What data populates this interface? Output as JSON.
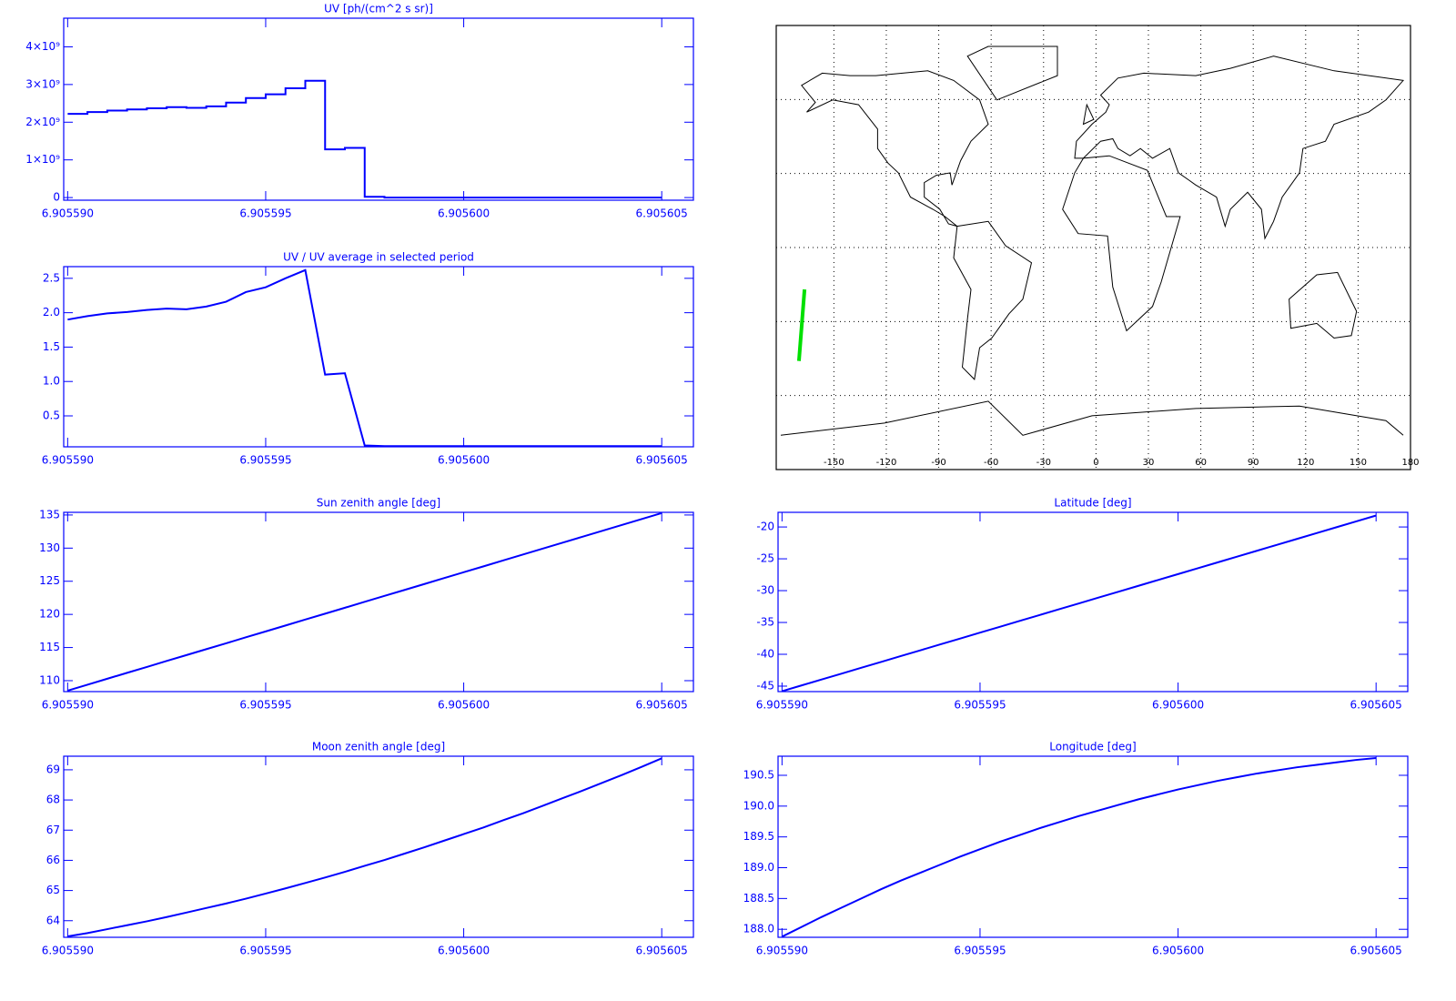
{
  "chart_data": [
    {
      "type": "line",
      "step": true,
      "title": "UV [ph/(cm^2 s sr)]",
      "x": [
        6.90559,
        6.9055905,
        6.905591,
        6.9055915,
        6.905592,
        6.9055925,
        6.905593,
        6.9055935,
        6.905594,
        6.9055945,
        6.905595,
        6.9055955,
        6.905596,
        6.9055965,
        6.905597,
        6.9055975,
        6.905598,
        6.9055985,
        6.905599,
        6.9055995,
        6.9056,
        6.9056005,
        6.905601,
        6.9056015,
        6.905602,
        6.9056025,
        6.905603,
        6.9056035,
        6.905604,
        6.9056045,
        6.905605
      ],
      "series": [
        {
          "color": "#0000ff",
          "values": [
            2220000000,
            2270000000,
            2310000000,
            2340000000,
            2370000000,
            2400000000,
            2380000000,
            2420000000,
            2520000000,
            2640000000,
            2740000000,
            2900000000,
            3100000000,
            1280000000,
            1320000000,
            20000000,
            0,
            0,
            0,
            0,
            0,
            0,
            0,
            0,
            0,
            0,
            0,
            0,
            0,
            0,
            0
          ]
        }
      ],
      "xlim": [
        6.9055899,
        6.9056058
      ],
      "ylim": [
        -70000000,
        4760000000
      ],
      "xticks": [
        {
          "value": 6.90559,
          "label": "6.905590"
        },
        {
          "value": 6.905595,
          "label": "6.905595"
        },
        {
          "value": 6.9056,
          "label": "6.905600"
        },
        {
          "value": 6.905605,
          "label": "6.905605"
        }
      ],
      "yticks": [
        0,
        {
          "value": 1000000000,
          "label": "1×10⁹"
        },
        {
          "value": 2000000000,
          "label": "2×10⁹"
        },
        {
          "value": 3000000000,
          "label": "3×10⁹"
        },
        {
          "value": 4000000000,
          "label": "4×10⁹"
        }
      ]
    },
    {
      "type": "line",
      "title": "UV / UV average in selected period",
      "x": [
        6.90559,
        6.9055905,
        6.905591,
        6.9055915,
        6.905592,
        6.9055925,
        6.905593,
        6.9055935,
        6.905594,
        6.9055945,
        6.905595,
        6.9055955,
        6.905596,
        6.9055965,
        6.905597,
        6.9055975,
        6.905598,
        6.9055985,
        6.905599,
        6.9055995,
        6.9056,
        6.9056005,
        6.905601,
        6.9056015,
        6.905602,
        6.9056025,
        6.905603,
        6.9056035,
        6.905604,
        6.9056045,
        6.905605
      ],
      "series": [
        {
          "color": "#0000ff",
          "values": [
            1.9,
            1.95,
            1.99,
            2.01,
            2.04,
            2.06,
            2.05,
            2.09,
            2.16,
            2.3,
            2.37,
            2.5,
            2.62,
            1.1,
            1.12,
            0.07,
            0.06,
            0.06,
            0.06,
            0.06,
            0.06,
            0.06,
            0.06,
            0.06,
            0.06,
            0.06,
            0.06,
            0.06,
            0.06,
            0.06,
            0.06
          ]
        }
      ],
      "xlim": [
        6.9055899,
        6.9056058
      ],
      "ylim": [
        0.05,
        2.67
      ],
      "xticks": [
        {
          "value": 6.90559,
          "label": "6.905590"
        },
        {
          "value": 6.905595,
          "label": "6.905595"
        },
        {
          "value": 6.9056,
          "label": "6.905600"
        },
        {
          "value": 6.905605,
          "label": "6.905605"
        }
      ],
      "yticks": [
        0.5,
        {
          "value": 1,
          "label": "1.0"
        },
        1.5,
        {
          "value": 2,
          "label": "2.0"
        },
        2.5
      ]
    },
    {
      "type": "map",
      "xlim": [
        -183,
        180
      ],
      "ylim": [
        -90,
        90
      ],
      "xticks": [
        -150,
        -120,
        -90,
        -60,
        -30,
        0,
        30,
        60,
        90,
        120,
        150,
        180
      ],
      "ygrid": [
        -60,
        -30,
        0,
        30,
        60
      ],
      "series": [
        {
          "color": "#00e000",
          "x": [
            -170,
            -168.4,
            -166.8
          ],
          "values": [
            -46,
            -31.5,
            -17
          ]
        }
      ]
    },
    {
      "type": "line",
      "title": "Sun zenith angle [deg]",
      "x": [
        6.90559,
        6.9055905,
        6.905591,
        6.9055915,
        6.905592,
        6.9055925,
        6.905593,
        6.9055935,
        6.905594,
        6.9055945,
        6.905595,
        6.9055955,
        6.905596,
        6.9055965,
        6.905597,
        6.9055975,
        6.905598,
        6.9055985,
        6.905599,
        6.9055995,
        6.9056,
        6.9056005,
        6.905601,
        6.9056015,
        6.905602,
        6.9056025,
        6.905603,
        6.9056035,
        6.905604,
        6.9056045,
        6.905605
      ],
      "series": [
        {
          "color": "#0000ff",
          "values": [
            108.5,
            109.39,
            110.29,
            111.18,
            112.07,
            112.97,
            113.86,
            114.75,
            115.64,
            116.54,
            117.43,
            118.32,
            119.22,
            120.11,
            121.0,
            121.9,
            122.79,
            123.68,
            124.57,
            125.47,
            126.36,
            127.25,
            128.15,
            129.04,
            129.93,
            130.83,
            131.72,
            132.61,
            133.5,
            134.4,
            135.29
          ]
        }
      ],
      "xlim": [
        6.9055899,
        6.9056058
      ],
      "ylim": [
        108.35,
        135.4
      ],
      "xticks": [
        {
          "value": 6.90559,
          "label": "6.905590"
        },
        {
          "value": 6.905595,
          "label": "6.905595"
        },
        {
          "value": 6.9056,
          "label": "6.905600"
        },
        {
          "value": 6.905605,
          "label": "6.905605"
        }
      ],
      "yticks": [
        110,
        115,
        120,
        125,
        130,
        135
      ]
    },
    {
      "type": "line",
      "title": "Latitude [deg]",
      "x": [
        6.90559,
        6.9055905,
        6.905591,
        6.9055915,
        6.905592,
        6.9055925,
        6.905593,
        6.9055935,
        6.905594,
        6.9055945,
        6.905595,
        6.9055955,
        6.905596,
        6.9055965,
        6.905597,
        6.9055975,
        6.905598,
        6.9055985,
        6.905599,
        6.9055995,
        6.9056,
        6.9056005,
        6.905601,
        6.9056015,
        6.905602,
        6.9056025,
        6.905603,
        6.9056035,
        6.905604,
        6.9056045,
        6.905605
      ],
      "series": [
        {
          "color": "#0000ff",
          "values": [
            -45.8,
            -44.88,
            -43.96,
            -43.04,
            -42.12,
            -41.2,
            -40.28,
            -39.36,
            -38.44,
            -37.52,
            -36.6,
            -35.68,
            -34.76,
            -33.84,
            -32.92,
            -32.0,
            -31.08,
            -30.16,
            -29.24,
            -28.32,
            -27.4,
            -26.48,
            -25.56,
            -24.64,
            -23.72,
            -22.8,
            -21.88,
            -20.96,
            -20.04,
            -19.12,
            -18.2
          ]
        }
      ],
      "xlim": [
        6.9055899,
        6.9056058
      ],
      "ylim": [
        -45.86,
        -17.7
      ],
      "xticks": [
        {
          "value": 6.90559,
          "label": "6.905590"
        },
        {
          "value": 6.905595,
          "label": "6.905595"
        },
        {
          "value": 6.9056,
          "label": "6.905600"
        },
        {
          "value": 6.905605,
          "label": "6.905605"
        }
      ],
      "yticks": [
        -45,
        -40,
        -35,
        -30,
        -25,
        -20
      ]
    },
    {
      "type": "line",
      "title": "Moon zenith angle [deg]",
      "x": [
        6.90559,
        6.9055905,
        6.905591,
        6.9055915,
        6.905592,
        6.9055925,
        6.905593,
        6.9055935,
        6.905594,
        6.9055945,
        6.905595,
        6.9055955,
        6.905596,
        6.9055965,
        6.905597,
        6.9055975,
        6.905598,
        6.9055985,
        6.905599,
        6.9055995,
        6.9056,
        6.9056005,
        6.905601,
        6.9056015,
        6.905602,
        6.9056025,
        6.905603,
        6.9056035,
        6.905604,
        6.9056045,
        6.905605
      ],
      "series": [
        {
          "color": "#0000ff",
          "values": [
            63.48,
            63.59,
            63.72,
            63.85,
            63.98,
            64.12,
            64.27,
            64.42,
            64.57,
            64.73,
            64.9,
            65.07,
            65.25,
            65.43,
            65.62,
            65.82,
            66.01,
            66.22,
            66.43,
            66.65,
            66.87,
            67.09,
            67.33,
            67.56,
            67.81,
            68.06,
            68.31,
            68.57,
            68.83,
            69.1,
            69.38
          ]
        }
      ],
      "xlim": [
        6.9055899,
        6.9056058
      ],
      "ylim": [
        63.45,
        69.45
      ],
      "xticks": [
        {
          "value": 6.90559,
          "label": "6.905590"
        },
        {
          "value": 6.905595,
          "label": "6.905595"
        },
        {
          "value": 6.9056,
          "label": "6.905600"
        },
        {
          "value": 6.905605,
          "label": "6.905605"
        }
      ],
      "yticks": [
        64,
        65,
        66,
        67,
        68,
        69
      ]
    },
    {
      "type": "line",
      "title": "Longitude [deg]",
      "x": [
        6.90559,
        6.9055905,
        6.905591,
        6.9055915,
        6.905592,
        6.9055925,
        6.905593,
        6.9055935,
        6.905594,
        6.9055945,
        6.905595,
        6.9055955,
        6.905596,
        6.9055965,
        6.905597,
        6.9055975,
        6.905598,
        6.9055985,
        6.905599,
        6.9055995,
        6.9056,
        6.9056005,
        6.905601,
        6.9056015,
        6.905602,
        6.9056025,
        6.905603,
        6.9056035,
        6.905604,
        6.9056045,
        6.905605
      ],
      "series": [
        {
          "color": "#0000ff",
          "values": [
            187.88,
            188.04,
            188.2,
            188.35,
            188.5,
            188.65,
            188.79,
            188.92,
            189.05,
            189.18,
            189.3,
            189.42,
            189.53,
            189.64,
            189.74,
            189.84,
            189.93,
            190.02,
            190.11,
            190.19,
            190.27,
            190.34,
            190.41,
            190.47,
            190.53,
            190.58,
            190.63,
            190.67,
            190.71,
            190.75,
            190.78
          ]
        }
      ],
      "xlim": [
        6.9055899,
        6.9056058
      ],
      "ylim": [
        187.87,
        190.81
      ],
      "xticks": [
        {
          "value": 6.90559,
          "label": "6.905590"
        },
        {
          "value": 6.905595,
          "label": "6.905595"
        },
        {
          "value": 6.9056,
          "label": "6.905600"
        },
        {
          "value": 6.905605,
          "label": "6.905605"
        }
      ],
      "yticks": [
        {
          "value": 188,
          "label": "188.0"
        },
        188.5,
        {
          "value": 189,
          "label": "189.0"
        },
        189.5,
        {
          "value": 190,
          "label": "190.0"
        },
        190.5
      ]
    }
  ]
}
